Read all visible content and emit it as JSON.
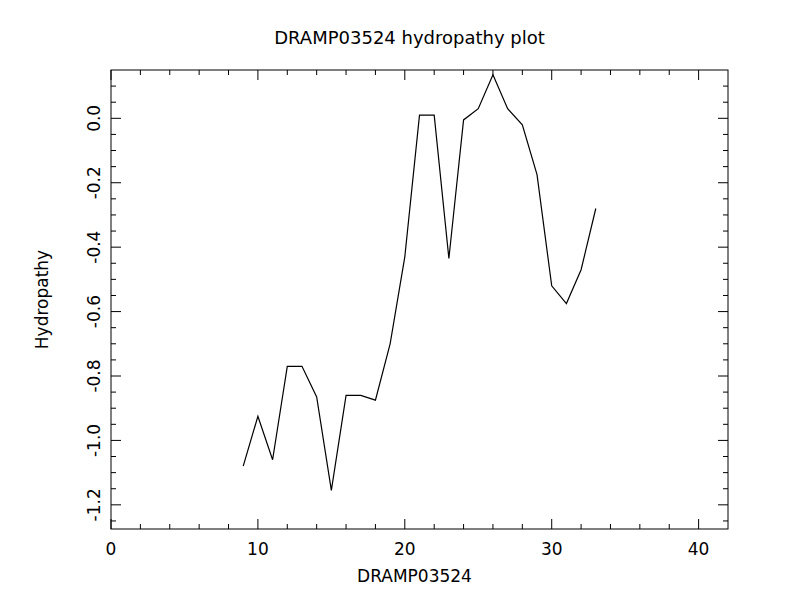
{
  "chart_data": {
    "type": "line",
    "title": "DRAMP03524 hydropathy plot",
    "x_label": "DRAMP03524",
    "y_label": "Hydropathy",
    "x": [
      9,
      10,
      11,
      12,
      13,
      14,
      15,
      16,
      17,
      18,
      19,
      20,
      21,
      22,
      23,
      24,
      25,
      26,
      27,
      28,
      29,
      30,
      31,
      32,
      33
    ],
    "values": [
      -1.08,
      -0.925,
      -1.06,
      -0.77,
      -0.77,
      -0.865,
      -1.155,
      -0.86,
      -0.86,
      -0.875,
      -0.7,
      -0.43,
      0.01,
      0.01,
      -0.435,
      -0.005,
      0.03,
      0.135,
      0.03,
      -0.02,
      -0.175,
      -0.52,
      -0.575,
      -0.47,
      -0.28
    ],
    "color": "#000000",
    "xlim": [
      0,
      42
    ],
    "xticks": [
      0,
      10,
      20,
      30,
      40
    ],
    "ylim": [
      -1.275,
      0.15
    ],
    "yticks": [
      {
        "value": -1.2,
        "label": "-1.2"
      },
      {
        "value": -1,
        "label": "-1.0"
      },
      {
        "value": -0.8,
        "label": "-0.8"
      },
      {
        "value": -0.6,
        "label": "-0.6"
      },
      {
        "value": -0.4,
        "label": "-0.4"
      },
      {
        "value": -0.2,
        "label": "-0.2"
      },
      {
        "value": 0,
        "label": "0.0"
      }
    ],
    "grid": false
  }
}
